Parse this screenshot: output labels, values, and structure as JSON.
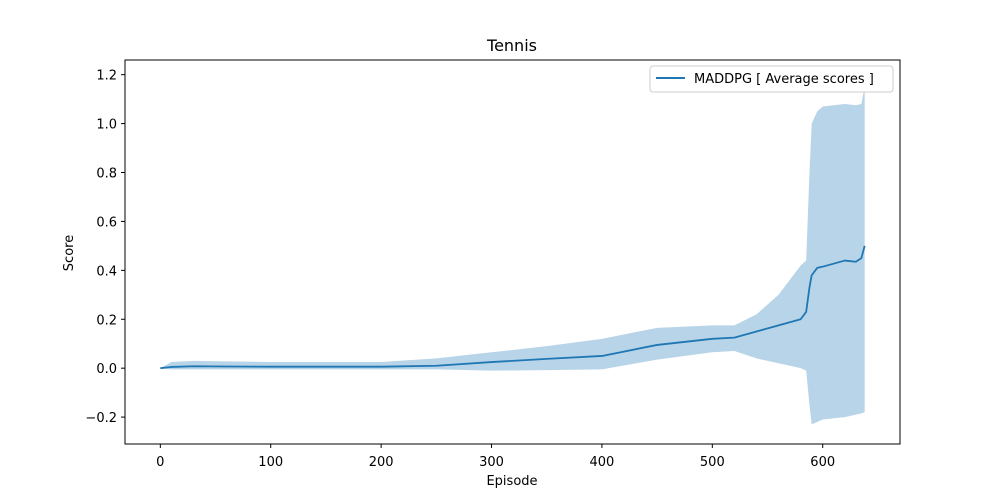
{
  "chart_data": {
    "type": "line",
    "title": "Tennis",
    "xlabel": "Episode",
    "ylabel": "Score",
    "xlim": [
      -32,
      670
    ],
    "ylim": [
      -0.31,
      1.26
    ],
    "xticks": [
      0,
      100,
      200,
      300,
      400,
      500,
      600
    ],
    "yticks": [
      -0.2,
      0.0,
      0.2,
      0.4,
      0.6,
      0.8,
      1.0,
      1.2
    ],
    "ytick_labels": [
      "−0.2",
      "0.0",
      "0.2",
      "0.4",
      "0.6",
      "0.8",
      "1.0",
      "1.2"
    ],
    "grid": false,
    "legend_position": "top-right",
    "colors": {
      "line": "#1f77b4",
      "band": "#b8d4e8"
    },
    "series": [
      {
        "name": "MADDPG [ Average scores ]",
        "x": [
          0,
          10,
          30,
          60,
          100,
          150,
          200,
          250,
          300,
          350,
          400,
          450,
          500,
          520,
          540,
          560,
          580,
          585,
          588,
          590,
          595,
          600,
          620,
          630,
          635,
          638
        ],
        "y": [
          0,
          0.005,
          0.008,
          0.007,
          0.006,
          0.006,
          0.006,
          0.01,
          0.025,
          0.038,
          0.05,
          0.095,
          0.12,
          0.125,
          0.15,
          0.175,
          0.2,
          0.23,
          0.33,
          0.38,
          0.41,
          0.415,
          0.44,
          0.435,
          0.45,
          0.5
        ],
        "upper": [
          0,
          0.025,
          0.03,
          0.028,
          0.025,
          0.025,
          0.025,
          0.04,
          0.065,
          0.09,
          0.12,
          0.165,
          0.175,
          0.175,
          0.22,
          0.3,
          0.42,
          0.44,
          0.8,
          1.0,
          1.05,
          1.07,
          1.08,
          1.075,
          1.08,
          1.15
        ],
        "lower": [
          0,
          -0.005,
          -0.005,
          -0.005,
          -0.005,
          -0.005,
          -0.005,
          -0.005,
          -0.01,
          -0.008,
          -0.005,
          0.035,
          0.065,
          0.07,
          0.04,
          0.02,
          0.0,
          -0.01,
          -0.15,
          -0.23,
          -0.22,
          -0.21,
          -0.2,
          -0.19,
          -0.185,
          -0.18
        ]
      }
    ]
  }
}
